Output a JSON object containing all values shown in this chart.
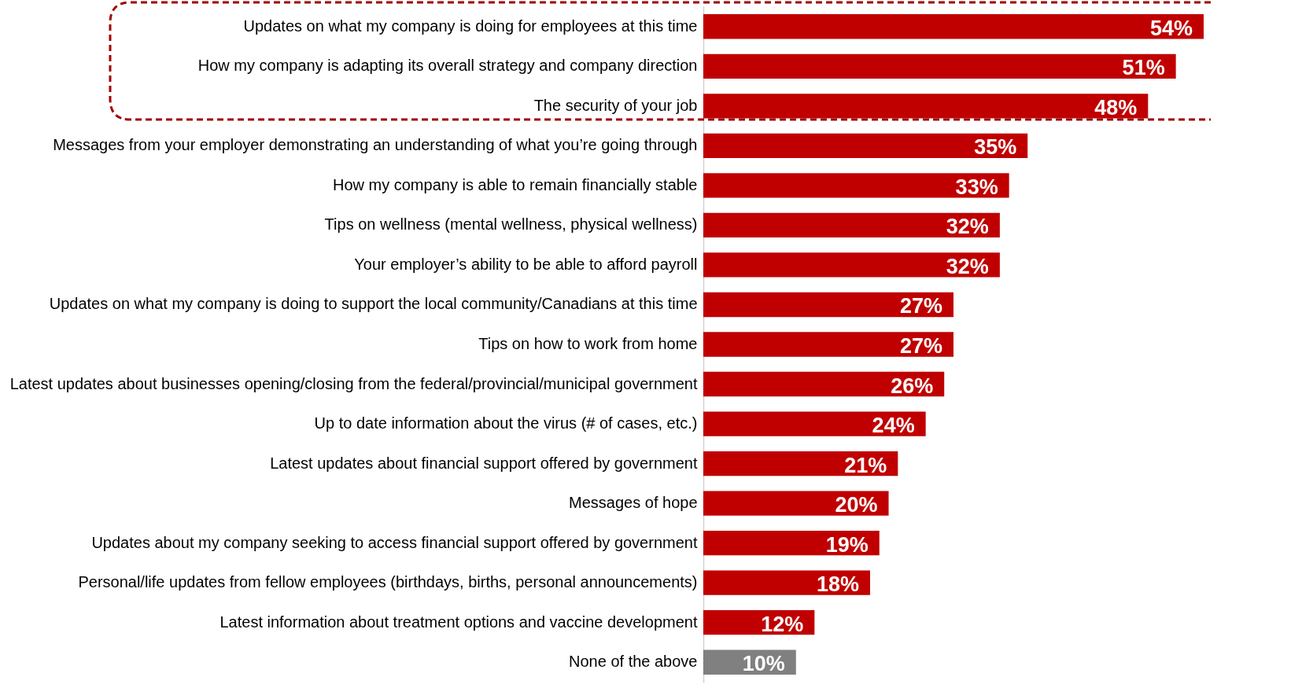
{
  "chart_data": {
    "type": "bar",
    "orientation": "horizontal",
    "categories": [
      "Updates on what my company is doing for employees at this time",
      "How my company is adapting its overall strategy and company direction",
      "The security of your job",
      "Messages from your employer demonstrating an understanding of what you’re going through",
      "How my company is able to remain financially stable",
      "Tips on wellness (mental wellness, physical wellness)",
      "Your employer’s ability to be able to afford payroll",
      "Updates on what my company is doing to support the local community/Canadians at this time",
      "Tips on how to work from home",
      "Latest updates about businesses opening/closing from the federal/provincial/municipal government",
      "Up to date information about the virus (# of cases, etc.)",
      "Latest updates about financial support offered by government",
      "Messages of hope",
      "Updates about my company seeking to access financial support offered by government",
      "Personal/life updates from fellow employees (birthdays, births, personal announcements)",
      "Latest information about treatment options and vaccine development",
      "None of the above"
    ],
    "values": [
      54,
      51,
      48,
      35,
      33,
      32,
      32,
      27,
      27,
      26,
      24,
      21,
      20,
      19,
      18,
      12,
      10
    ],
    "colors": [
      "#c00000",
      "#c00000",
      "#c00000",
      "#c00000",
      "#c00000",
      "#c00000",
      "#c00000",
      "#c00000",
      "#c00000",
      "#c00000",
      "#c00000",
      "#c00000",
      "#c00000",
      "#c00000",
      "#c00000",
      "#c00000",
      "#808080"
    ],
    "value_labels": [
      "54%",
      "51%",
      "48%",
      "35%",
      "33%",
      "32%",
      "32%",
      "27%",
      "27%",
      "26%",
      "24%",
      "21%",
      "20%",
      "19%",
      "18%",
      "12%",
      "10%"
    ]
  }
}
